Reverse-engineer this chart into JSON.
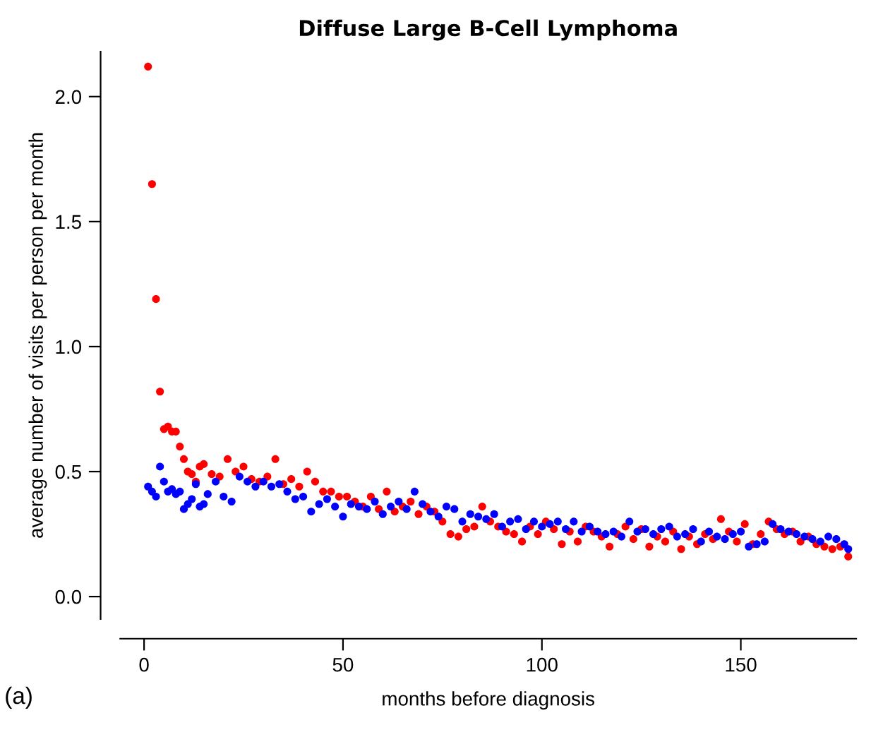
{
  "chart_data": {
    "type": "scatter",
    "title": "Diffuse Large B-Cell Lymphoma",
    "xlabel": "months before diagnosis",
    "ylabel": "average number of visits per person per month",
    "annotations": [
      "(a)"
    ],
    "xlim": [
      -6,
      179
    ],
    "ylim": [
      -0.09,
      2.18
    ],
    "xticks": [
      0,
      50,
      100,
      150
    ],
    "yticks": [
      {
        "value": 0,
        "label": "0.0"
      },
      0.5,
      {
        "value": 1,
        "label": "1.0"
      },
      1.5,
      {
        "value": 2,
        "label": "2.0"
      }
    ],
    "grid": false,
    "legend": false,
    "marker": "circle",
    "series": [
      {
        "color": "#ff0000",
        "x": [
          1,
          2,
          3,
          4,
          5,
          6,
          7,
          8,
          9,
          10,
          11,
          12,
          13,
          14,
          15,
          17,
          19,
          21,
          23,
          25,
          27,
          29,
          31,
          33,
          35,
          37,
          39,
          41,
          43,
          45,
          47,
          49,
          51,
          53,
          55,
          57,
          59,
          61,
          63,
          65,
          67,
          69,
          71,
          73,
          75,
          77,
          79,
          81,
          83,
          85,
          87,
          89,
          91,
          93,
          95,
          97,
          99,
          101,
          103,
          105,
          107,
          109,
          111,
          113,
          115,
          117,
          119,
          121,
          123,
          125,
          127,
          129,
          131,
          133,
          135,
          137,
          139,
          141,
          143,
          145,
          147,
          149,
          151,
          153,
          155,
          157,
          159,
          161,
          163,
          165,
          167,
          169,
          171,
          173,
          175,
          177
        ],
        "values": [
          2.12,
          1.65,
          1.19,
          0.82,
          0.67,
          0.68,
          0.66,
          0.66,
          0.6,
          0.55,
          0.5,
          0.49,
          0.46,
          0.52,
          0.53,
          0.49,
          0.48,
          0.55,
          0.5,
          0.52,
          0.47,
          0.46,
          0.48,
          0.55,
          0.45,
          0.47,
          0.44,
          0.5,
          0.46,
          0.42,
          0.42,
          0.4,
          0.4,
          0.38,
          0.36,
          0.4,
          0.35,
          0.42,
          0.34,
          0.36,
          0.38,
          0.33,
          0.36,
          0.34,
          0.3,
          0.25,
          0.24,
          0.27,
          0.28,
          0.36,
          0.3,
          0.28,
          0.26,
          0.25,
          0.22,
          0.28,
          0.25,
          0.3,
          0.27,
          0.21,
          0.26,
          0.22,
          0.28,
          0.26,
          0.24,
          0.2,
          0.25,
          0.28,
          0.23,
          0.27,
          0.2,
          0.24,
          0.22,
          0.26,
          0.19,
          0.24,
          0.21,
          0.25,
          0.23,
          0.31,
          0.26,
          0.22,
          0.29,
          0.21,
          0.25,
          0.3,
          0.27,
          0.25,
          0.26,
          0.22,
          0.24,
          0.21,
          0.2,
          0.19,
          0.2,
          0.16
        ]
      },
      {
        "color": "#0000ff",
        "x": [
          1,
          2,
          3,
          4,
          5,
          6,
          7,
          8,
          9,
          10,
          11,
          12,
          13,
          14,
          15,
          16,
          18,
          20,
          22,
          24,
          26,
          28,
          30,
          32,
          34,
          36,
          38,
          40,
          42,
          44,
          46,
          48,
          50,
          52,
          54,
          56,
          58,
          60,
          62,
          64,
          66,
          68,
          70,
          72,
          74,
          76,
          78,
          80,
          82,
          84,
          86,
          88,
          90,
          92,
          94,
          96,
          98,
          100,
          102,
          104,
          106,
          108,
          110,
          112,
          114,
          116,
          118,
          120,
          122,
          124,
          126,
          128,
          130,
          132,
          134,
          136,
          138,
          140,
          142,
          144,
          146,
          148,
          150,
          152,
          154,
          156,
          158,
          160,
          162,
          164,
          166,
          168,
          170,
          172,
          174,
          176,
          177
        ],
        "values": [
          0.44,
          0.42,
          0.4,
          0.52,
          0.46,
          0.42,
          0.43,
          0.41,
          0.42,
          0.35,
          0.37,
          0.39,
          0.45,
          0.36,
          0.37,
          0.41,
          0.46,
          0.4,
          0.38,
          0.48,
          0.46,
          0.44,
          0.46,
          0.44,
          0.45,
          0.42,
          0.39,
          0.4,
          0.34,
          0.37,
          0.39,
          0.36,
          0.32,
          0.37,
          0.36,
          0.35,
          0.38,
          0.33,
          0.36,
          0.38,
          0.35,
          0.42,
          0.37,
          0.34,
          0.32,
          0.36,
          0.35,
          0.3,
          0.33,
          0.32,
          0.31,
          0.33,
          0.28,
          0.3,
          0.31,
          0.27,
          0.3,
          0.28,
          0.29,
          0.3,
          0.27,
          0.3,
          0.26,
          0.28,
          0.26,
          0.25,
          0.26,
          0.24,
          0.3,
          0.26,
          0.27,
          0.25,
          0.27,
          0.28,
          0.24,
          0.25,
          0.27,
          0.22,
          0.26,
          0.24,
          0.23,
          0.25,
          0.26,
          0.2,
          0.21,
          0.22,
          0.29,
          0.27,
          0.26,
          0.25,
          0.24,
          0.23,
          0.22,
          0.24,
          0.23,
          0.21,
          0.19
        ]
      }
    ]
  }
}
